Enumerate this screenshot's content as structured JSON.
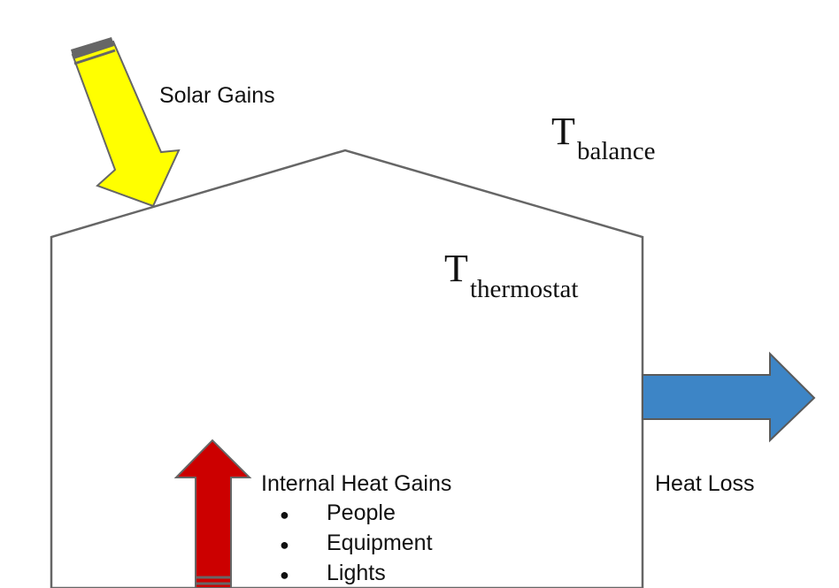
{
  "labels": {
    "solar_gains": "Solar Gains",
    "t_balance_main": "T",
    "t_balance_sub": "balance",
    "t_thermostat_main": "T",
    "t_thermostat_sub": "thermostat",
    "internal_heat_gains": "Internal Heat Gains",
    "heat_loss": "Heat Loss"
  },
  "internal_gains_items": [
    "People",
    "Equipment",
    "Lights"
  ],
  "bullet": "●",
  "colors": {
    "solar_arrow": "#ffff00",
    "internal_arrow": "#cc0000",
    "heat_loss_arrow": "#3d85c6",
    "outline": "#666666"
  }
}
